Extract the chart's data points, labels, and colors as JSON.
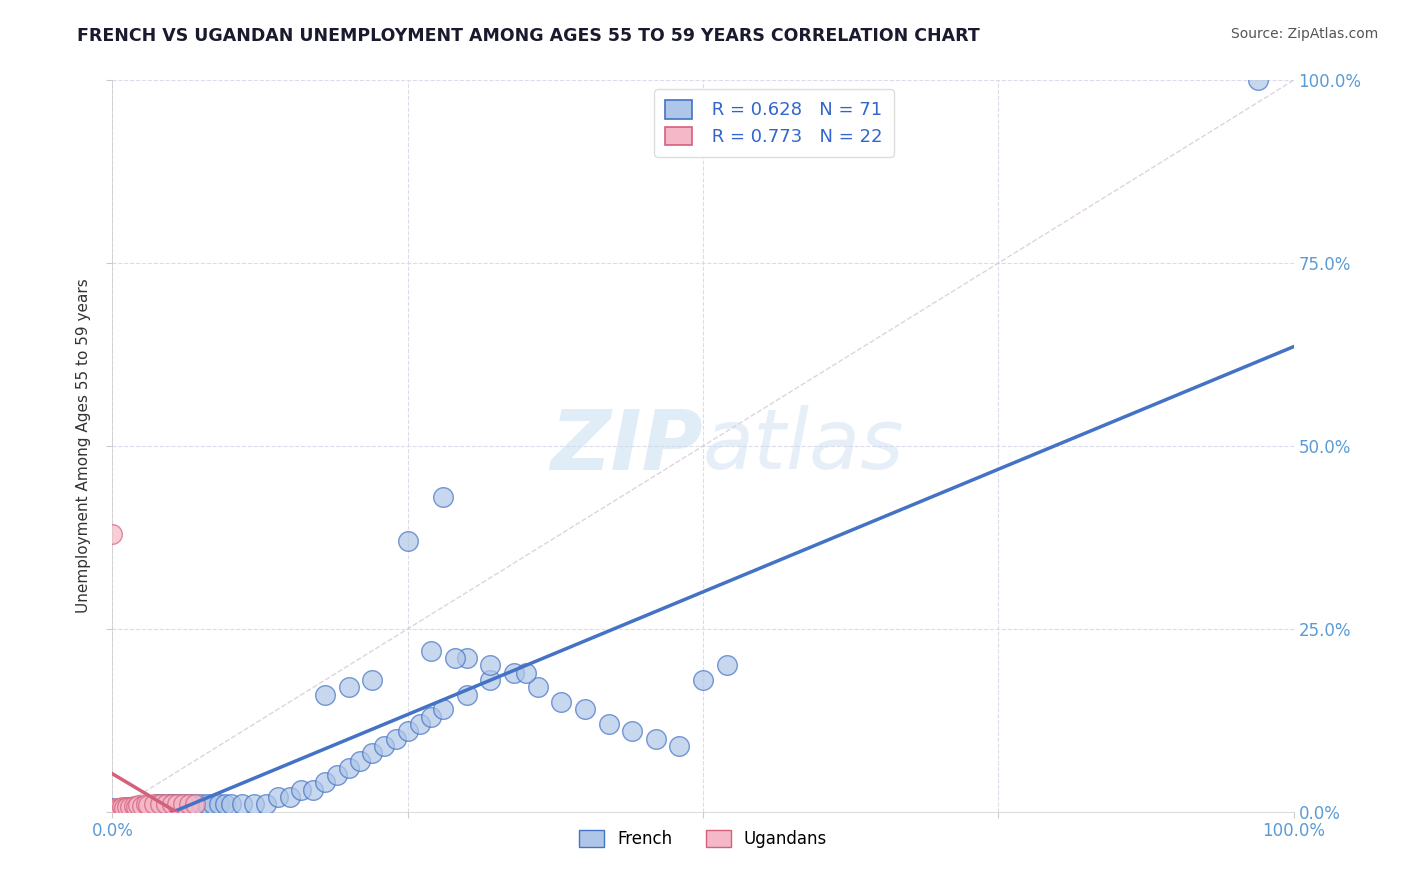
{
  "title": "FRENCH VS UGANDAN UNEMPLOYMENT AMONG AGES 55 TO 59 YEARS CORRELATION CHART",
  "source": "Source: ZipAtlas.com",
  "ylabel": "Unemployment Among Ages 55 to 59 years",
  "legend_french": "French",
  "legend_ugandans": "Ugandans",
  "french_R": "R = 0.628",
  "french_N": "N = 71",
  "ugandan_R": "R = 0.773",
  "ugandan_N": "N = 22",
  "french_color": "#aec6e8",
  "french_edge_color": "#4472c4",
  "ugandan_color": "#f4b8c8",
  "ugandan_edge_color": "#d4607a",
  "french_line_color": "#4472c4",
  "ugandan_line_color": "#d4607a",
  "diagonal_color": "#d8c8d8",
  "tick_color": "#5b9bd5",
  "watermark_color": "#c8ddf0",
  "background_color": "#ffffff",
  "grid_color": "#d8d8e8",
  "french_points_x": [
    0.0,
    0.005,
    0.008,
    0.01,
    0.012,
    0.015,
    0.018,
    0.02,
    0.022,
    0.025,
    0.028,
    0.03,
    0.032,
    0.035,
    0.038,
    0.04,
    0.042,
    0.045,
    0.048,
    0.05,
    0.055,
    0.06,
    0.065,
    0.07,
    0.075,
    0.08,
    0.085,
    0.09,
    0.095,
    0.1,
    0.11,
    0.12,
    0.13,
    0.14,
    0.15,
    0.16,
    0.17,
    0.18,
    0.19,
    0.2,
    0.21,
    0.22,
    0.23,
    0.24,
    0.25,
    0.26,
    0.27,
    0.28,
    0.3,
    0.32,
    0.34,
    0.36,
    0.38,
    0.4,
    0.42,
    0.44,
    0.46,
    0.48,
    0.5,
    0.52,
    0.25,
    0.28,
    0.3,
    0.32,
    0.35,
    0.22,
    0.2,
    0.18,
    0.27,
    0.29,
    0.97
  ],
  "french_points_y": [
    0.005,
    0.003,
    0.005,
    0.004,
    0.006,
    0.005,
    0.007,
    0.006,
    0.008,
    0.007,
    0.008,
    0.007,
    0.009,
    0.008,
    0.01,
    0.009,
    0.01,
    0.009,
    0.01,
    0.01,
    0.01,
    0.01,
    0.01,
    0.01,
    0.01,
    0.01,
    0.01,
    0.01,
    0.01,
    0.01,
    0.01,
    0.01,
    0.01,
    0.02,
    0.02,
    0.03,
    0.03,
    0.04,
    0.05,
    0.06,
    0.07,
    0.08,
    0.09,
    0.1,
    0.11,
    0.12,
    0.13,
    0.14,
    0.16,
    0.18,
    0.19,
    0.17,
    0.15,
    0.14,
    0.12,
    0.11,
    0.1,
    0.09,
    0.18,
    0.2,
    0.37,
    0.43,
    0.21,
    0.2,
    0.19,
    0.18,
    0.17,
    0.16,
    0.22,
    0.21,
    1.0
  ],
  "ugandan_points_x": [
    0.0,
    0.003,
    0.005,
    0.008,
    0.01,
    0.012,
    0.015,
    0.018,
    0.02,
    0.022,
    0.025,
    0.028,
    0.03,
    0.035,
    0.04,
    0.045,
    0.05,
    0.055,
    0.06,
    0.065,
    0.07,
    0.0
  ],
  "ugandan_points_y": [
    0.003,
    0.005,
    0.004,
    0.006,
    0.005,
    0.007,
    0.006,
    0.008,
    0.007,
    0.009,
    0.008,
    0.01,
    0.009,
    0.01,
    0.01,
    0.01,
    0.01,
    0.01,
    0.01,
    0.01,
    0.01,
    0.38
  ],
  "xlim": [
    0.0,
    1.0
  ],
  "ylim": [
    0.0,
    1.0
  ],
  "xticks": [
    0.0,
    0.25,
    0.5,
    0.75,
    1.0
  ],
  "yticks": [
    0.0,
    0.25,
    0.5,
    0.75,
    1.0
  ],
  "xtick_labels_left": "0.0%",
  "xtick_labels_right": "100.0%",
  "ytick_labels": [
    "0.0%",
    "25.0%",
    "50.0%",
    "75.0%",
    "100.0%"
  ]
}
